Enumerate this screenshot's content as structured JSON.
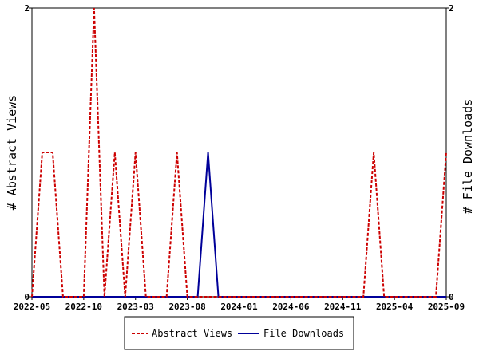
{
  "chart_data": {
    "type": "line",
    "title": "",
    "xlabel": "",
    "ylabel": "# Abstract Views",
    "y2label": "# File Downloads",
    "ylim": [
      0,
      2
    ],
    "y2lim": [
      0,
      2
    ],
    "y_tick_labels": [
      "0",
      "2"
    ],
    "y2_tick_labels": [
      "0",
      "2"
    ],
    "x_tick_labels": [
      "2022-05",
      "2022-10",
      "2023-03",
      "2023-08",
      "2024-01",
      "2024-06",
      "2024-11",
      "2025-04",
      "2025-09"
    ],
    "grid": false,
    "legend_position": "bottom-center",
    "x": [
      "2022-05",
      "2022-06",
      "2022-07",
      "2022-08",
      "2022-09",
      "2022-10",
      "2022-11",
      "2022-12",
      "2023-01",
      "2023-02",
      "2023-03",
      "2023-04",
      "2023-05",
      "2023-06",
      "2023-07",
      "2023-08",
      "2023-09",
      "2023-10",
      "2023-11",
      "2023-12",
      "2024-01",
      "2024-02",
      "2024-03",
      "2024-04",
      "2024-05",
      "2024-06",
      "2024-07",
      "2024-08",
      "2024-09",
      "2024-10",
      "2024-11",
      "2024-12",
      "2025-01",
      "2025-02",
      "2025-03",
      "2025-04",
      "2025-05",
      "2025-06",
      "2025-07",
      "2025-08",
      "2025-09"
    ],
    "series": [
      {
        "name": "Abstract Views",
        "color": "#cc0000",
        "dash": "dashed",
        "axis": "left",
        "values": [
          0,
          1,
          1,
          0,
          0,
          0,
          2,
          0,
          1,
          0,
          1,
          0,
          0,
          0,
          1,
          0,
          0,
          0,
          0,
          0,
          0,
          0,
          0,
          0,
          0,
          0,
          0,
          0,
          0,
          0,
          0,
          0,
          0,
          1,
          0,
          0,
          0,
          0,
          0,
          0,
          1
        ]
      },
      {
        "name": "File Downloads",
        "color": "#000099",
        "dash": "solid",
        "axis": "right",
        "values": [
          0,
          0,
          0,
          0,
          0,
          0,
          0,
          0,
          0,
          0,
          0,
          0,
          0,
          0,
          0,
          0,
          0,
          1,
          0,
          0,
          0,
          0,
          0,
          0,
          0,
          0,
          0,
          0,
          0,
          0,
          0,
          0,
          0,
          0,
          0,
          0,
          0,
          0,
          0,
          0,
          0
        ]
      }
    ]
  }
}
